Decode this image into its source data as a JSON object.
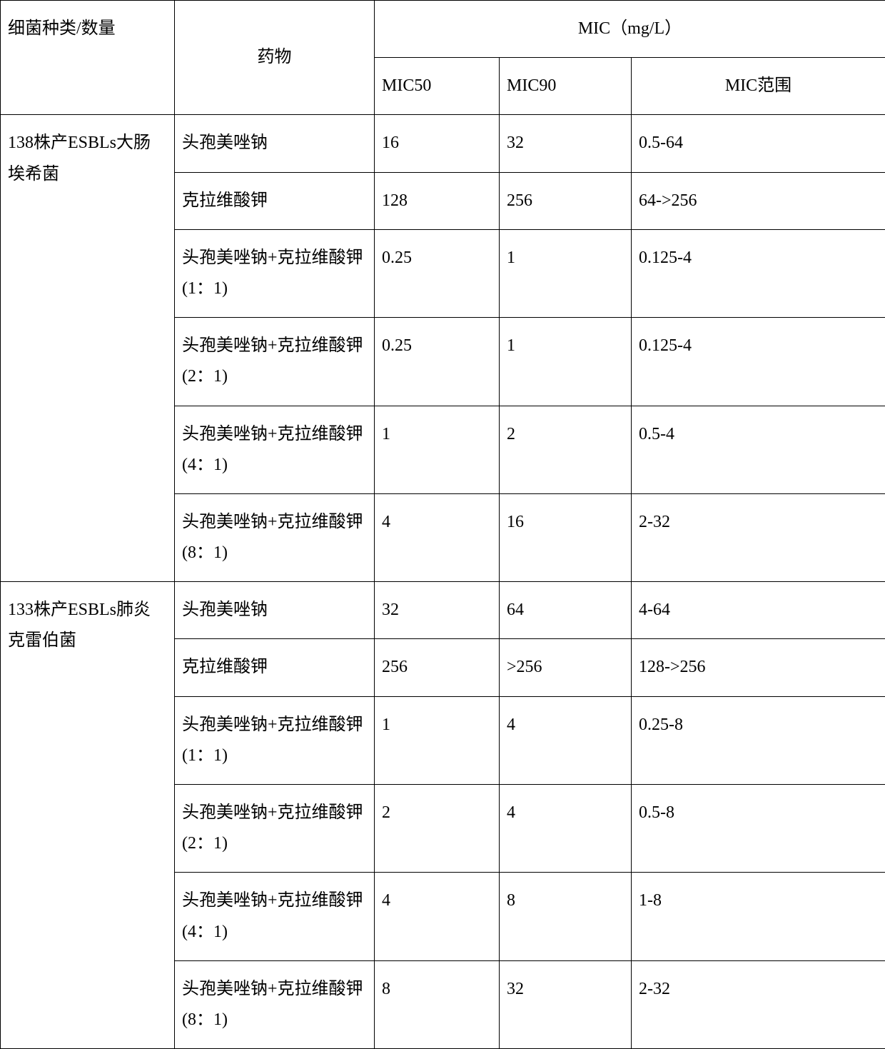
{
  "header": {
    "species": "细菌种类/数量",
    "drug": "药物",
    "mic_group": "MIC（mg/L）",
    "mic50": "MIC50",
    "mic90": "MIC90",
    "mic_range": "MIC范围"
  },
  "groups": [
    {
      "species": "138株产ESBLs大肠埃希菌",
      "rows": [
        {
          "drug": "头孢美唑钠",
          "mic50": "16",
          "mic90": "32",
          "range": "0.5-64"
        },
        {
          "drug": "克拉维酸钾",
          "mic50": "128",
          "mic90": "256",
          "range": "64->256"
        },
        {
          "drug": "头孢美唑钠+克拉维酸钾(1：1)",
          "mic50": "0.25",
          "mic90": "1",
          "range": "0.125-4"
        },
        {
          "drug": "头孢美唑钠+克拉维酸钾(2：1)",
          "mic50": "0.25",
          "mic90": "1",
          "range": "0.125-4"
        },
        {
          "drug": "头孢美唑钠+克拉维酸钾(4：1)",
          "mic50": "1",
          "mic90": "2",
          "range": "0.5-4"
        },
        {
          "drug": "头孢美唑钠+克拉维酸钾(8：1)",
          "mic50": "4",
          "mic90": "16",
          "range": "2-32"
        }
      ]
    },
    {
      "species": "133株产ESBLs肺炎克雷伯菌",
      "rows": [
        {
          "drug": "头孢美唑钠",
          "mic50": "32",
          "mic90": "64",
          "range": "4-64"
        },
        {
          "drug": "克拉维酸钾",
          "mic50": "256",
          "mic90": ">256",
          "range": "128->256"
        },
        {
          "drug": "头孢美唑钠+克拉维酸钾(1：1)",
          "mic50": "1",
          "mic90": "4",
          "range": "0.25-8"
        },
        {
          "drug": "头孢美唑钠+克拉维酸钾(2：1)",
          "mic50": "2",
          "mic90": "4",
          "range": "0.5-8"
        },
        {
          "drug": "头孢美唑钠+克拉维酸钾(4：1)",
          "mic50": "4",
          "mic90": "8",
          "range": "1-8"
        },
        {
          "drug": "头孢美唑钠+克拉维酸钾(8：1)",
          "mic50": "8",
          "mic90": "32",
          "range": "2-32"
        }
      ]
    }
  ]
}
